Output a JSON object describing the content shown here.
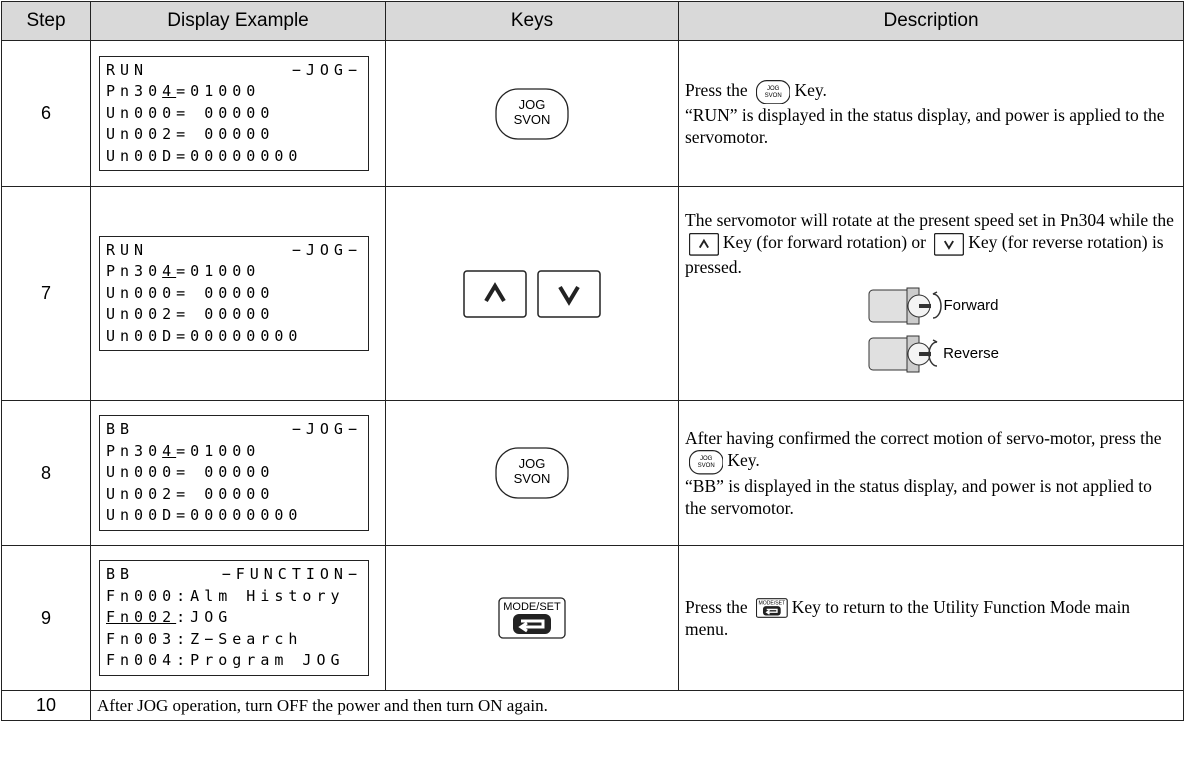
{
  "table": {
    "header": [
      "Step",
      "Display Example",
      "Keys",
      "Description"
    ],
    "rows": [
      {
        "step": "6",
        "display": {
          "status": "RUN",
          "mode": "−JOG−",
          "lines": [
            {
              "parts": [
                "Pn30",
                "4",
                "=01000"
              ],
              "underline": 1
            },
            "Un000= 00000",
            "Un002= 00000",
            "Un00D=00000000"
          ]
        },
        "keys": [
          {
            "shape": "round",
            "label": [
              "JOG",
              "SVON"
            ]
          }
        ],
        "description": [
          [
            "Press the",
            {
              "shape": "round",
              "label": [
                "JOG",
                "SVON"
              ]
            },
            "Key."
          ],
          [
            "“RUN” is displayed in the status display, and power is applied to the servomotor."
          ]
        ]
      },
      {
        "step": "7",
        "display": {
          "status": "RUN",
          "mode": "−JOG−",
          "lines": [
            {
              "parts": [
                "Pn30",
                "4",
                "=01000"
              ],
              "underline": 1
            },
            "Un000= 00000",
            "Un002= 00000",
            "Un00D=00000000"
          ]
        },
        "keys": [
          {
            "shape": "up"
          },
          {
            "shape": "down"
          }
        ],
        "description": [
          [
            "The servomotor will rotate at the present speed set in Pn304 while the",
            {
              "shape": "up"
            },
            "Key (for forward rotation) or",
            {
              "shape": "down"
            },
            "Key (for reverse rotation) is pressed."
          ]
        ],
        "figure": [
          "Forward",
          "Reverse"
        ]
      },
      {
        "step": "8",
        "display": {
          "status": "BB",
          "mode": "−JOG−",
          "lines": [
            {
              "parts": [
                "Pn30",
                "4",
                "=01000"
              ],
              "underline": 1
            },
            "Un000= 00000",
            "Un002= 00000",
            "Un00D=00000000"
          ]
        },
        "keys": [
          {
            "shape": "round",
            "label": [
              "JOG",
              "SVON"
            ]
          }
        ],
        "description": [
          [
            "After having confirmed the correct motion of servo-motor, press the",
            {
              "shape": "round",
              "label": [
                "JOG",
                "SVON"
              ]
            },
            "Key."
          ],
          [
            "“BB” is displayed in the status display, and power is not applied to the servomotor."
          ]
        ]
      },
      {
        "step": "9",
        "display": {
          "status": "BB",
          "mode": "−FUNCTION−",
          "lines": [
            "Fn000:Alm History",
            {
              "parts": [
                "Fn002",
                ":JOG"
              ],
              "underline": 0
            },
            "Fn003:Z−Search",
            "Fn004:Program JOG"
          ]
        },
        "keys": [
          {
            "shape": "modeset",
            "label": [
              "MODE/SET"
            ]
          }
        ],
        "description": [
          [
            "Press the",
            {
              "shape": "modeset",
              "label": [
                "MODE/SET"
              ]
            },
            "Key to return to the Utility Function Mode main menu."
          ]
        ]
      },
      {
        "step": "10",
        "note": "After JOG operation, turn OFF the power and then turn ON again."
      }
    ]
  }
}
